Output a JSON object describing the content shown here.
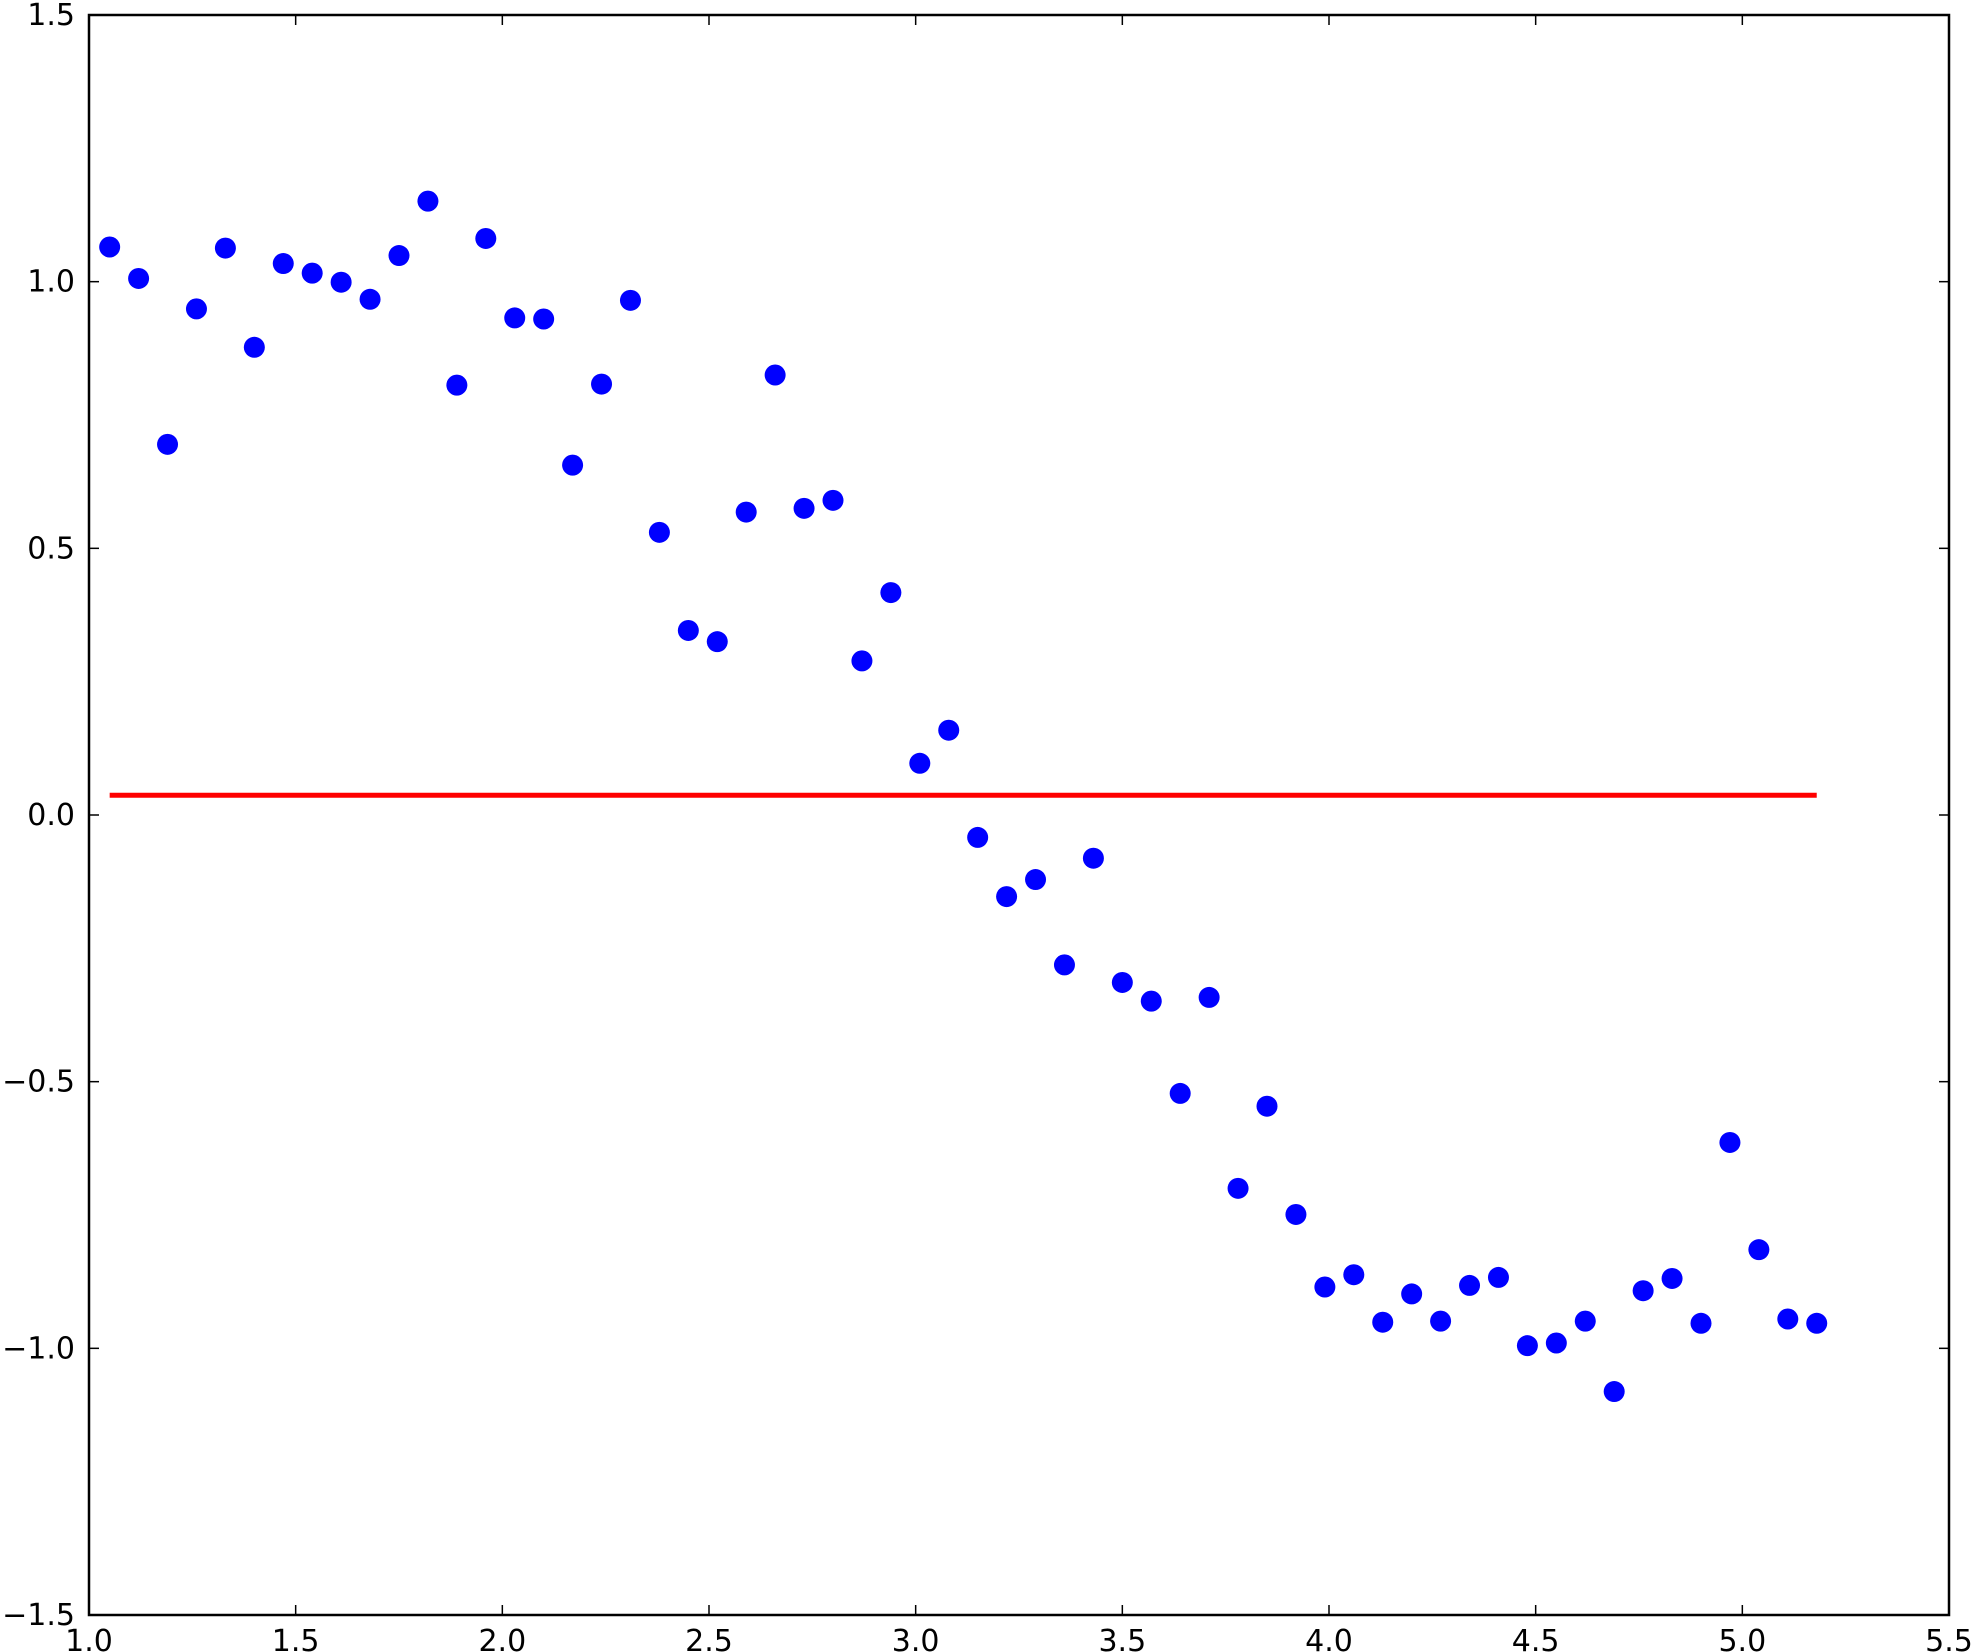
{
  "chart_data": {
    "type": "scatter",
    "title": "",
    "xlabel": "",
    "ylabel": "",
    "xlim": [
      1.0,
      5.5
    ],
    "ylim": [
      -1.5,
      1.5
    ],
    "grid": false,
    "xticks": [
      1.0,
      1.5,
      2.0,
      2.5,
      3.0,
      3.5,
      4.0,
      4.5,
      5.0,
      5.5
    ],
    "yticks": [
      -1.5,
      -1.0,
      -0.5,
      0.0,
      0.5,
      1.0,
      1.5
    ],
    "xtick_labels": [
      "1.0",
      "1.5",
      "2.0",
      "2.5",
      "3.0",
      "3.5",
      "4.0",
      "4.5",
      "5.0",
      "5.5"
    ],
    "ytick_labels": [
      "−1.5",
      "−1.0",
      "−0.5",
      "0.0",
      "0.5",
      "1.0",
      "1.5"
    ],
    "series": [
      {
        "kind": "scatter",
        "color": "#0000ff",
        "points": [
          [
            1.05,
            1.065
          ],
          [
            1.12,
            1.006
          ],
          [
            1.19,
            0.695
          ],
          [
            1.26,
            0.949
          ],
          [
            1.33,
            1.063
          ],
          [
            1.4,
            0.877
          ],
          [
            1.47,
            1.034
          ],
          [
            1.54,
            1.016
          ],
          [
            1.61,
            0.999
          ],
          [
            1.68,
            0.967
          ],
          [
            1.75,
            1.049
          ],
          [
            1.82,
            1.151
          ],
          [
            1.89,
            0.806
          ],
          [
            1.96,
            1.081
          ],
          [
            2.03,
            0.932
          ],
          [
            2.1,
            0.93
          ],
          [
            2.17,
            0.656
          ],
          [
            2.24,
            0.808
          ],
          [
            2.31,
            0.965
          ],
          [
            2.38,
            0.53
          ],
          [
            2.45,
            0.346
          ],
          [
            2.52,
            0.325
          ],
          [
            2.59,
            0.568
          ],
          [
            2.66,
            0.825
          ],
          [
            2.73,
            0.575
          ],
          [
            2.8,
            0.59
          ],
          [
            2.87,
            0.289
          ],
          [
            2.94,
            0.417
          ],
          [
            3.01,
            0.097
          ],
          [
            3.08,
            0.159
          ],
          [
            3.15,
            -0.042
          ],
          [
            3.22,
            -0.153
          ],
          [
            3.29,
            -0.121
          ],
          [
            3.36,
            -0.281
          ],
          [
            3.43,
            -0.081
          ],
          [
            3.5,
            -0.314
          ],
          [
            3.57,
            -0.349
          ],
          [
            3.64,
            -0.522
          ],
          [
            3.71,
            -0.342
          ],
          [
            3.78,
            -0.7
          ],
          [
            3.85,
            -0.546
          ],
          [
            3.92,
            -0.749
          ],
          [
            3.99,
            -0.885
          ],
          [
            4.06,
            -0.862
          ],
          [
            4.13,
            -0.951
          ],
          [
            4.2,
            -0.898
          ],
          [
            4.27,
            -0.949
          ],
          [
            4.34,
            -0.882
          ],
          [
            4.41,
            -0.867
          ],
          [
            4.48,
            -0.995
          ],
          [
            4.55,
            -0.99
          ],
          [
            4.62,
            -0.949
          ],
          [
            4.69,
            -1.081
          ],
          [
            4.76,
            -0.892
          ],
          [
            4.83,
            -0.869
          ],
          [
            4.9,
            -0.953
          ],
          [
            4.97,
            -0.614
          ],
          [
            5.04,
            -0.815
          ],
          [
            5.11,
            -0.945
          ],
          [
            5.18,
            -0.953
          ]
        ]
      },
      {
        "kind": "line",
        "color": "#ff0000",
        "x": [
          1.05,
          5.18
        ],
        "y": [
          0.037,
          0.037
        ]
      }
    ]
  }
}
